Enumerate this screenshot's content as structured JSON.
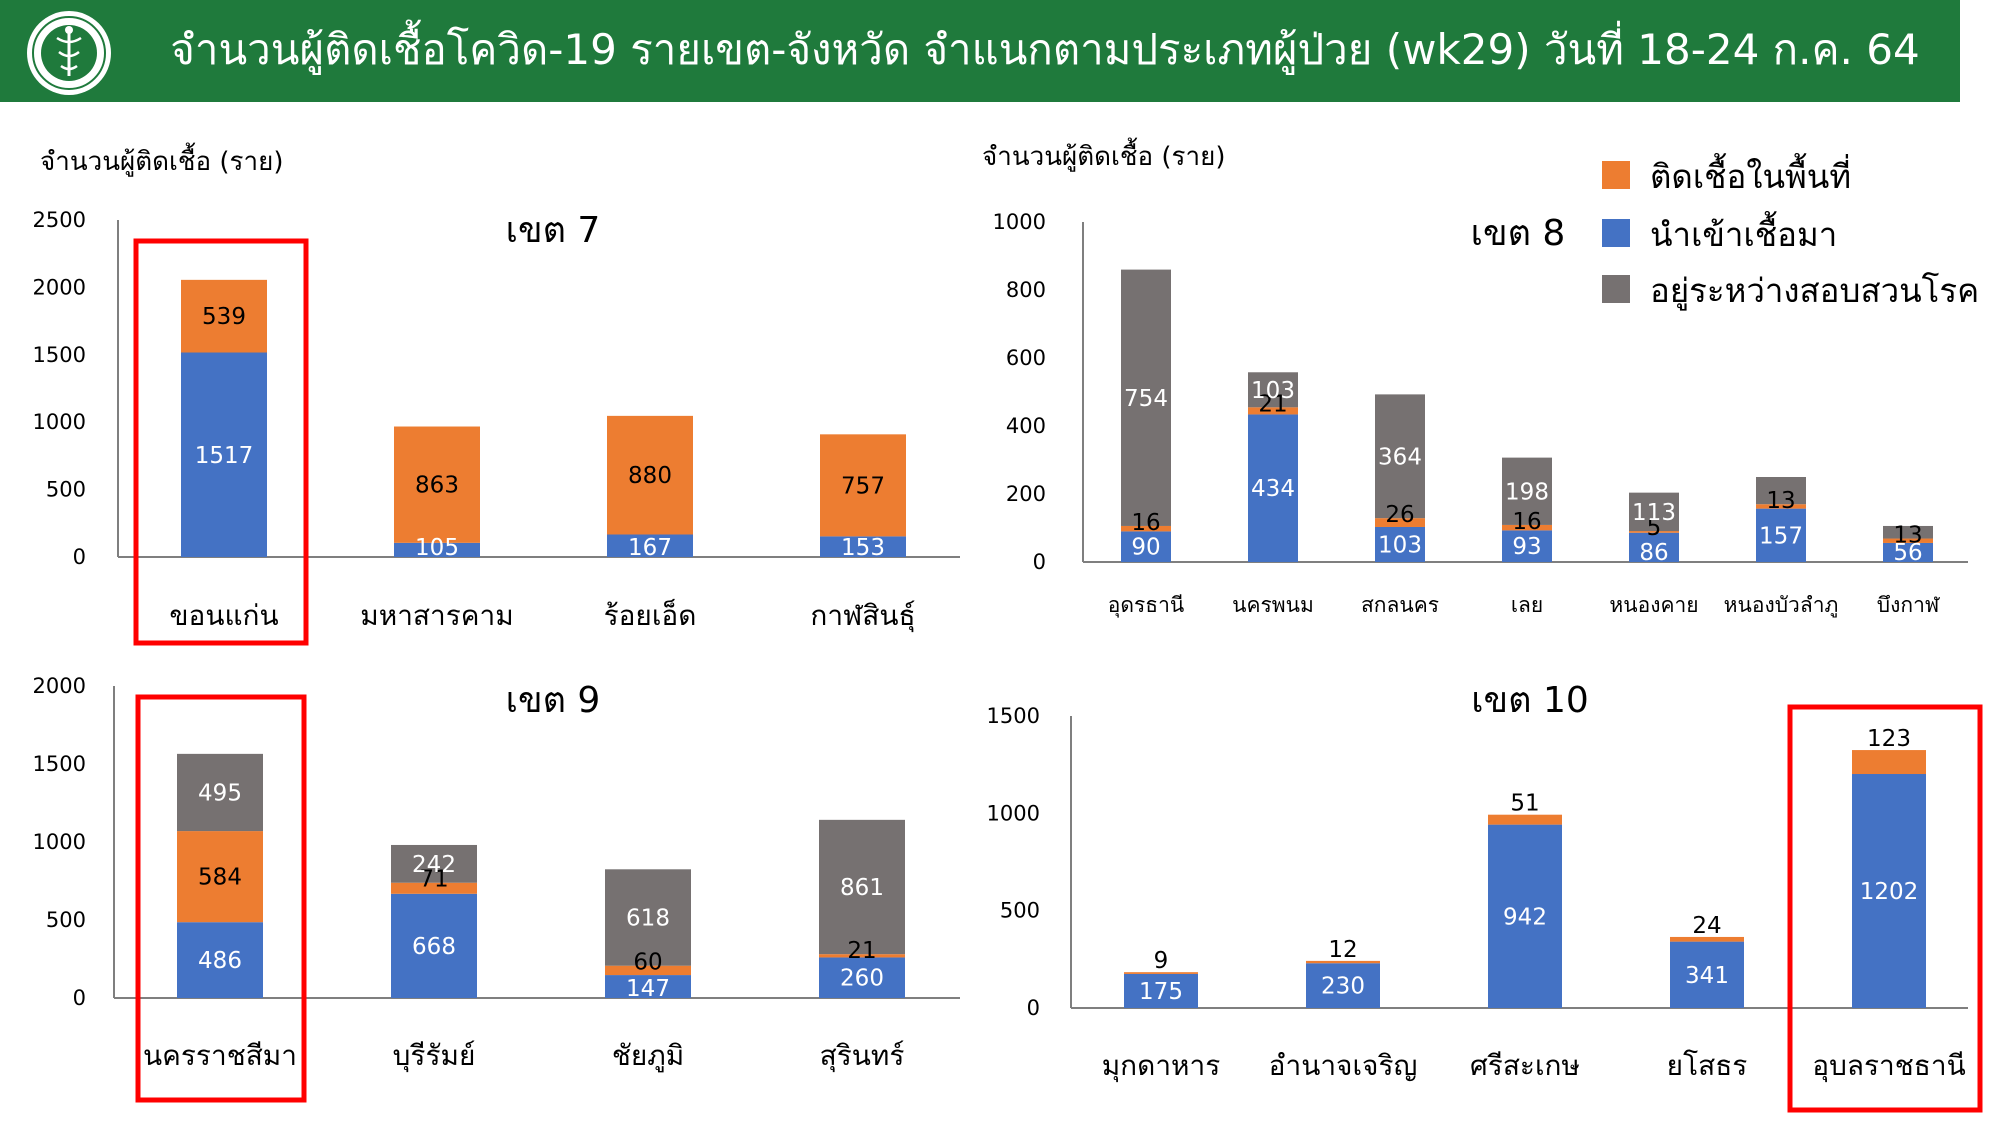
{
  "header": {
    "title": "จำนวนผู้ติดเชื้อโควิด-19 รายเขต-จังหวัด จำแนกตามประเภทผู้ป่วย (wk29) วันที่ 18-24 ก.ค. 64",
    "logo_icon": "ministry-of-public-health-seal-icon"
  },
  "colors": {
    "header_bg": "#1f7a3c",
    "local": "#ed7d31",
    "imported": "#4472c4",
    "investigating": "#767171",
    "highlight": "#ff0000"
  },
  "legend": {
    "items": [
      {
        "key": "local",
        "label": "ติดเชื้อในพื้นที่"
      },
      {
        "key": "imported",
        "label": "นำเข้าเชื้อมา"
      },
      {
        "key": "investigating",
        "label": "อยู่ระหว่างสอบสวนโรค"
      }
    ]
  },
  "chart_data": [
    {
      "type": "bar",
      "stacked": true,
      "title": "เขต 7",
      "ylabel": "จำนวนผู้ติดเชื้อ (ราย)",
      "ylim": [
        0,
        2500
      ],
      "yticks": [
        0,
        500,
        1000,
        1500,
        2000,
        2500
      ],
      "categories": [
        "ขอนแก่น",
        "มหาสารคาม",
        "ร้อยเอ็ด",
        "กาฬสินธุ์"
      ],
      "highlight": [
        "ขอนแก่น"
      ],
      "series": [
        {
          "key": "imported",
          "values": [
            1517,
            105,
            167,
            153
          ]
        },
        {
          "key": "local",
          "values": [
            539,
            863,
            880,
            757
          ]
        }
      ]
    },
    {
      "type": "bar",
      "stacked": true,
      "title": "เขต 8",
      "ylabel": "จำนวนผู้ติดเชื้อ (ราย)",
      "ylim": [
        0,
        1000
      ],
      "yticks": [
        0,
        200,
        400,
        600,
        800,
        1000
      ],
      "categories": [
        "อุดรธานี",
        "นครพนม",
        "สกลนคร",
        "เลย",
        "หนองคาย",
        "หนองบัวลำภู",
        "บึงกาฬ"
      ],
      "highlight": [],
      "series": [
        {
          "key": "imported",
          "values": [
            90,
            434,
            103,
            93,
            86,
            157,
            56
          ]
        },
        {
          "key": "local",
          "values": [
            16,
            21,
            26,
            16,
            5,
            13,
            13
          ]
        },
        {
          "key": "investigating",
          "values": [
            754,
            103,
            364,
            198,
            113,
            80,
            37
          ]
        }
      ]
    },
    {
      "type": "bar",
      "stacked": true,
      "title": "เขต 9",
      "ylabel": "",
      "ylim": [
        0,
        2000
      ],
      "yticks": [
        0,
        500,
        1000,
        1500,
        2000
      ],
      "categories": [
        "นครราชสีมา",
        "บุรีรัมย์",
        "ชัยภูมิ",
        "สุรินทร์"
      ],
      "highlight": [
        "นครราชสีมา"
      ],
      "series": [
        {
          "key": "imported",
          "values": [
            486,
            668,
            147,
            260
          ]
        },
        {
          "key": "local",
          "values": [
            584,
            71,
            60,
            21
          ]
        },
        {
          "key": "investigating",
          "values": [
            495,
            242,
            618,
            861
          ]
        }
      ]
    },
    {
      "type": "bar",
      "stacked": true,
      "title": "เขต 10",
      "ylabel": "",
      "ylim": [
        0,
        1500
      ],
      "yticks": [
        0,
        500,
        1000,
        1500
      ],
      "categories": [
        "มุกดาหาร",
        "อำนาจเจริญ",
        "ศรีสะเกษ",
        "ยโสธร",
        "อุบลราชธานี"
      ],
      "highlight": [
        "อุบลราชธานี"
      ],
      "series": [
        {
          "key": "imported",
          "values": [
            175,
            230,
            942,
            341,
            1202
          ]
        },
        {
          "key": "local",
          "values": [
            9,
            12,
            51,
            24,
            123
          ]
        }
      ]
    }
  ]
}
